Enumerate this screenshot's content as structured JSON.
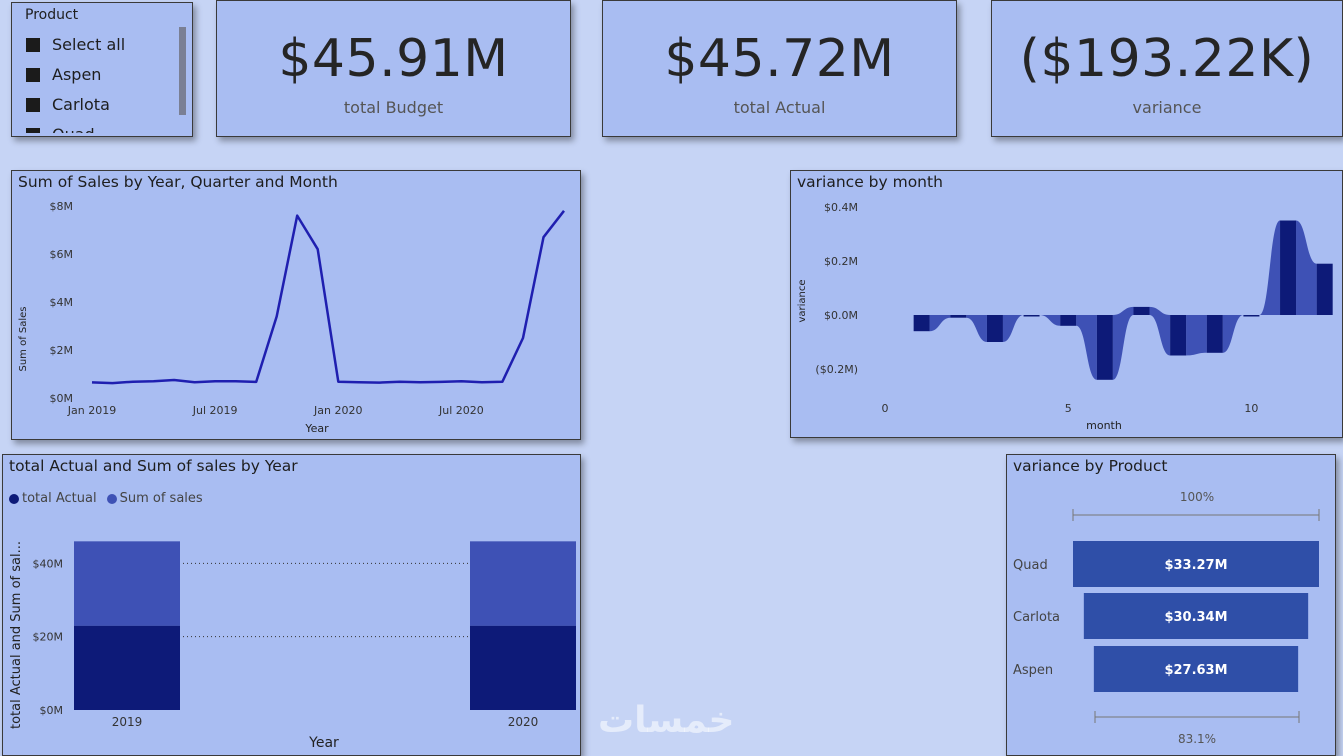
{
  "slicer": {
    "title": "Product",
    "items": [
      {
        "label": "Select all"
      },
      {
        "label": "Aspen"
      },
      {
        "label": "Carlota"
      },
      {
        "label": "Quad"
      }
    ]
  },
  "kpis": [
    {
      "value": "$45.91M",
      "label": "total Budget"
    },
    {
      "value": "$45.72M",
      "label": "total Actual"
    },
    {
      "value": "($193.22K)",
      "label": "variance"
    }
  ],
  "sales_chart": {
    "title": "Sum of Sales by Year, Quarter and Month",
    "xlabel": "Year",
    "ylabel": "Sum of Sales",
    "yticks": [
      "$0M",
      "$2M",
      "$4M",
      "$6M",
      "$8M"
    ],
    "xticks": [
      "Jan 2019",
      "Jul 2019",
      "Jan 2020",
      "Jul 2020"
    ]
  },
  "variance_month": {
    "title": "variance by month",
    "xlabel": "month",
    "ylabel": "variance",
    "yticks": [
      "$0.4M",
      "$0.2M",
      "$0.0M",
      "($0.2M)"
    ],
    "xticks": [
      "0",
      "5",
      "10"
    ]
  },
  "actual_sales": {
    "title": "total Actual and Sum of sales by Year",
    "legend": [
      "total Actual",
      "Sum of sales"
    ],
    "xlabel": "Year",
    "ylabel": "total Actual and Sum of sal...",
    "yticks": [
      "$0M",
      "$20M",
      "$40M"
    ],
    "xticks": [
      "2019",
      "2020"
    ]
  },
  "variance_product": {
    "title": "variance by Product",
    "top_pct": "100%",
    "bottom_pct": "83.1%",
    "bars": [
      {
        "label": "Quad",
        "value_label": "$33.27M"
      },
      {
        "label": "Carlota",
        "value_label": "$30.34M"
      },
      {
        "label": "Aspen",
        "value_label": "$27.63M"
      }
    ]
  },
  "colors": {
    "background": "#c6d4f5",
    "card": "#a9bdf2",
    "line": "#1f1fb0",
    "actual": "#0d1a78",
    "sales": "#3e51b5",
    "funnel": "#2f4fa8"
  },
  "watermark": "خمسات",
  "chart_data": [
    {
      "type": "line",
      "title": "Sum of Sales by Year, Quarter and Month",
      "xlabel": "Year",
      "ylabel": "Sum of Sales",
      "x": [
        "2019-01",
        "2019-02",
        "2019-03",
        "2019-04",
        "2019-05",
        "2019-06",
        "2019-07",
        "2019-08",
        "2019-09",
        "2019-10",
        "2019-11",
        "2019-12",
        "2020-01",
        "2020-02",
        "2020-03",
        "2020-04",
        "2020-05",
        "2020-06",
        "2020-07",
        "2020-08",
        "2020-09",
        "2020-10",
        "2020-11",
        "2020-12"
      ],
      "series": [
        {
          "values": [
            0.65,
            0.62,
            0.68,
            0.7,
            0.75,
            0.66,
            0.7,
            0.7,
            0.67,
            3.4,
            7.6,
            6.2,
            0.68,
            0.66,
            0.64,
            0.68,
            0.66,
            0.67,
            0.7,
            0.66,
            0.68,
            2.5,
            6.7,
            7.8
          ]
        }
      ],
      "ylim": [
        0,
        8
      ],
      "unit": "$M"
    },
    {
      "type": "area",
      "title": "variance by month",
      "xlabel": "month",
      "ylabel": "variance",
      "x": [
        1,
        2,
        3,
        4,
        5,
        6,
        7,
        8,
        9,
        10,
        11,
        12
      ],
      "series": [
        {
          "values": [
            -0.06,
            -0.01,
            -0.1,
            0.0,
            -0.04,
            -0.24,
            0.03,
            -0.15,
            -0.14,
            0.0,
            0.35,
            0.19
          ]
        }
      ],
      "xlim": [
        0,
        12
      ],
      "ylim": [
        -0.27,
        0.45
      ],
      "unit": "$M"
    },
    {
      "type": "bar",
      "title": "total Actual and Sum of sales by Year",
      "xlabel": "Year",
      "ylabel": "total Actual and Sum of sal...",
      "stacked": true,
      "categories": [
        "2019",
        "2020"
      ],
      "series": [
        {
          "name": "total Actual",
          "values": [
            23,
            23
          ]
        },
        {
          "name": "Sum of sales",
          "values": [
            23,
            23
          ]
        }
      ],
      "ylim": [
        0,
        48
      ],
      "unit": "$M"
    },
    {
      "type": "bar",
      "title": "variance by Product",
      "categories": [
        "Quad",
        "Carlota",
        "Aspen"
      ],
      "values": [
        33.27,
        30.34,
        27.63
      ],
      "unit": "$M"
    }
  ]
}
